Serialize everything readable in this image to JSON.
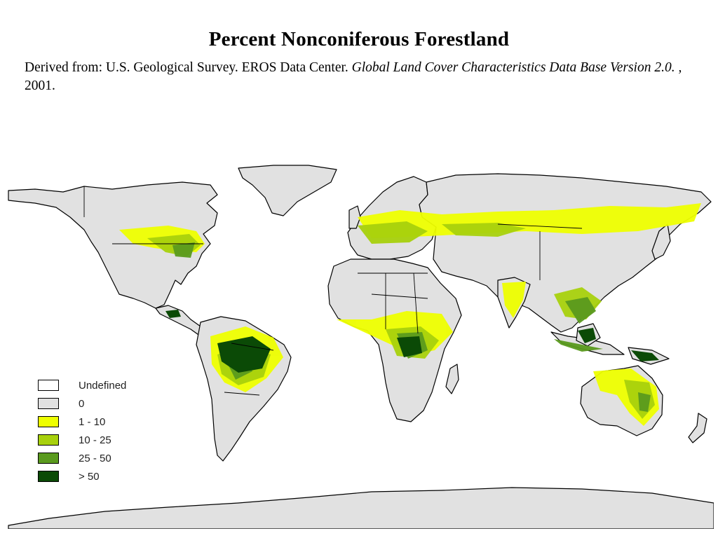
{
  "title": "Percent Nonconiferous Forestland",
  "source": {
    "prefix": "Derived from: U.S. Geological Survey. EROS Data Center.",
    "italic": "Global Land Cover Characteristics Data Base Version 2.0. ,",
    "suffix": "2001."
  },
  "legend": {
    "items": [
      {
        "label": "Undefined",
        "color": "#ffffff"
      },
      {
        "label": "0",
        "color": "#e1e1e1"
      },
      {
        "label": "1 - 10",
        "color": "#eeff00"
      },
      {
        "label": "10 - 25",
        "color": "#a8d10d"
      },
      {
        "label": "25 - 50",
        "color": "#5a9a1e"
      },
      {
        "label": "> 50",
        "color": "#0b4a06"
      }
    ]
  },
  "colors": {
    "land": "#e1e1e1",
    "border": "#000000",
    "class_1_10": "#eeff00",
    "class_10_25": "#a8d10d",
    "class_25_50": "#5a9a1e",
    "class_gt_50": "#0b4a06"
  }
}
